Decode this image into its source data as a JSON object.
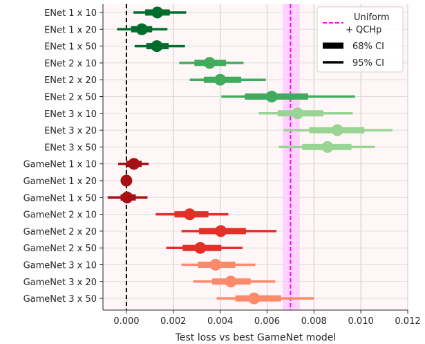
{
  "chart_data": {
    "type": "forest",
    "title": "",
    "xlabel": "Test loss vs best GameNet model",
    "ylabel": "",
    "xlim": [
      -0.001,
      0.012
    ],
    "xticks": [
      0.0,
      0.002,
      0.004,
      0.006,
      0.008,
      0.01,
      0.012
    ],
    "xtick_labels": [
      "0.000",
      "0.002",
      "0.004",
      "0.006",
      "0.008",
      "0.010",
      "0.012"
    ],
    "grid": true,
    "legend_position": "top-right",
    "zero_line": 0.0,
    "reference": {
      "label_line1": "Uniform",
      "label_line2": "+ QCHp",
      "value": 0.007,
      "band": [
        0.00666,
        0.0074
      ],
      "line_color": "#ff00ff",
      "band_color": "#ffccff"
    },
    "legend": {
      "ci68_label": "68% CI",
      "ci95_label": "95% CI"
    },
    "rows": [
      {
        "label": "ENet 1 x 10",
        "mean": 0.00132,
        "ci68": [
          0.0008,
          0.00185
        ],
        "ci95": [
          0.0003,
          0.00255
        ],
        "color": "#006d2c"
      },
      {
        "label": "ENet 1 x 20",
        "mean": 0.00066,
        "ci68": [
          0.0002,
          0.0011
        ],
        "ci95": [
          -0.0004,
          0.00175
        ],
        "color": "#006d2c"
      },
      {
        "label": "ENet 1 x 50",
        "mean": 0.0013,
        "ci68": [
          0.00085,
          0.0018
        ],
        "ci95": [
          0.00035,
          0.0025
        ],
        "color": "#006d2c"
      },
      {
        "label": "ENet 2 x 10",
        "mean": 0.00355,
        "ci68": [
          0.0029,
          0.00425
        ],
        "ci95": [
          0.00225,
          0.005
        ],
        "color": "#41ab5d"
      },
      {
        "label": "ENet 2 x 20",
        "mean": 0.004,
        "ci68": [
          0.0033,
          0.0049
        ],
        "ci95": [
          0.0027,
          0.00595
        ],
        "color": "#41ab5d"
      },
      {
        "label": "ENet 2 x 50",
        "mean": 0.0062,
        "ci68": [
          0.00505,
          0.00775
        ],
        "ci95": [
          0.00405,
          0.00975
        ],
        "color": "#41ab5d"
      },
      {
        "label": "ENet 3 x 10",
        "mean": 0.0073,
        "ci68": [
          0.00645,
          0.0084
        ],
        "ci95": [
          0.00565,
          0.00965
        ],
        "color": "#98d594"
      },
      {
        "label": "ENet 3 x 20",
        "mean": 0.009,
        "ci68": [
          0.0078,
          0.01015
        ],
        "ci95": [
          0.0067,
          0.01135
        ],
        "color": "#98d594"
      },
      {
        "label": "ENet 3 x 50",
        "mean": 0.00858,
        "ci68": [
          0.0075,
          0.0096
        ],
        "ci95": [
          0.0065,
          0.0106
        ],
        "color": "#98d594"
      },
      {
        "label": "GameNet 1 x 10",
        "mean": 0.00032,
        "ci68": [
          0.0,
          0.00065
        ],
        "ci95": [
          -0.00035,
          0.00095
        ],
        "color": "#a50f15"
      },
      {
        "label": "GameNet 1 x 20",
        "mean": 0.0,
        "ci68": [
          0.0,
          0.0
        ],
        "ci95": [
          0.0,
          0.0
        ],
        "color": "#a50f15"
      },
      {
        "label": "GameNet 1 x 50",
        "mean": 3e-05,
        "ci68": [
          -0.00025,
          0.0004
        ],
        "ci95": [
          -0.0008,
          0.0009
        ],
        "color": "#a50f15"
      },
      {
        "label": "GameNet 2 x 10",
        "mean": 0.0027,
        "ci68": [
          0.00205,
          0.0035
        ],
        "ci95": [
          0.00125,
          0.00435
        ],
        "color": "#e32f27"
      },
      {
        "label": "GameNet 2 x 20",
        "mean": 0.00403,
        "ci68": [
          0.0031,
          0.0051
        ],
        "ci95": [
          0.00235,
          0.0064
        ],
        "color": "#e32f27"
      },
      {
        "label": "GameNet 2 x 50",
        "mean": 0.00315,
        "ci68": [
          0.0024,
          0.00405
        ],
        "ci95": [
          0.0017,
          0.00495
        ],
        "color": "#e32f27"
      },
      {
        "label": "GameNet 3 x 10",
        "mean": 0.0038,
        "ci68": [
          0.00305,
          0.00465
        ],
        "ci95": [
          0.00235,
          0.0055
        ],
        "color": "#fb8a6b"
      },
      {
        "label": "GameNet 3 x 20",
        "mean": 0.00445,
        "ci68": [
          0.00365,
          0.0053
        ],
        "ci95": [
          0.00285,
          0.00635
        ],
        "color": "#fb8a6b"
      },
      {
        "label": "GameNet 3 x 50",
        "mean": 0.00545,
        "ci68": [
          0.00465,
          0.0066
        ],
        "ci95": [
          0.00385,
          0.008
        ],
        "color": "#fb8a6b"
      }
    ]
  }
}
